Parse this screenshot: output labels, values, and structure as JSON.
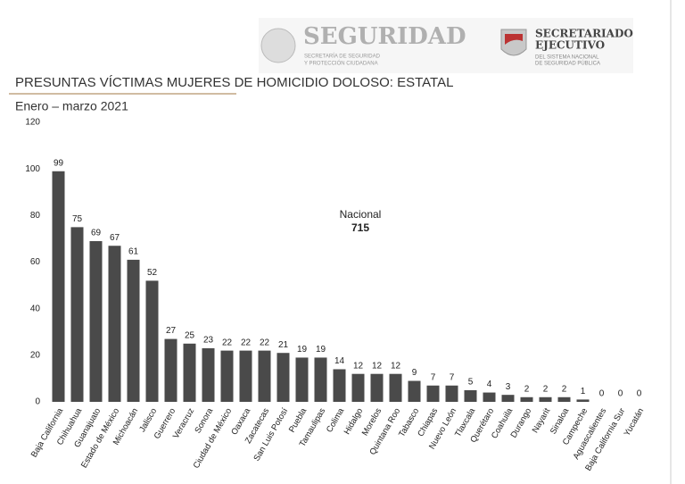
{
  "header": {
    "brand": "SEGURIDAD",
    "brand_sub": [
      "SECRETARÍA DE SEGURIDAD",
      "Y PROTECCIÓN CIUDADANA"
    ],
    "agency": [
      "SECRETARIADO",
      "EJECUTIVO"
    ],
    "agency_sub": [
      "DEL SISTEMA NACIONAL",
      "DE SEGURIDAD PÚBLICA"
    ]
  },
  "chart_data": {
    "type": "bar",
    "title": "PRESUNTAS VÍCTIMAS MUJERES DE HOMICIDIO DOLOSO: ESTATAL",
    "subtitle": "Enero – marzo 2021",
    "annotation": [
      "Nacional",
      "715"
    ],
    "categories": [
      "Baja California",
      "Chihuahua",
      "Guanajuato",
      "Estado de México",
      "Michoacán",
      "Jalisco",
      "Guerrero",
      "Veracruz",
      "Sonora",
      "Ciudad de México",
      "Oaxaca",
      "Zacatecas",
      "San Luis Potosí",
      "Puebla",
      "Tamaulipas",
      "Colima",
      "Hidalgo",
      "Morelos",
      "Quintana Roo",
      "Tabasco",
      "Chiapas",
      "Nuevo León",
      "Tlaxcala",
      "Querétaro",
      "Coahuila",
      "Durango",
      "Nayarit",
      "Sinaloa",
      "Campeche",
      "Aguascalientes",
      "Baja California Sur",
      "Yucatán"
    ],
    "values": [
      99,
      75,
      69,
      67,
      61,
      52,
      27,
      25,
      23,
      22,
      22,
      22,
      21,
      19,
      19,
      14,
      12,
      12,
      12,
      9,
      7,
      7,
      5,
      4,
      3,
      2,
      2,
      2,
      1,
      0,
      0,
      0
    ],
    "color": "#4a4a4a",
    "ylim": [
      0,
      120
    ],
    "yticks": [
      0,
      20,
      40,
      60,
      80,
      100,
      120
    ],
    "grid": false
  }
}
